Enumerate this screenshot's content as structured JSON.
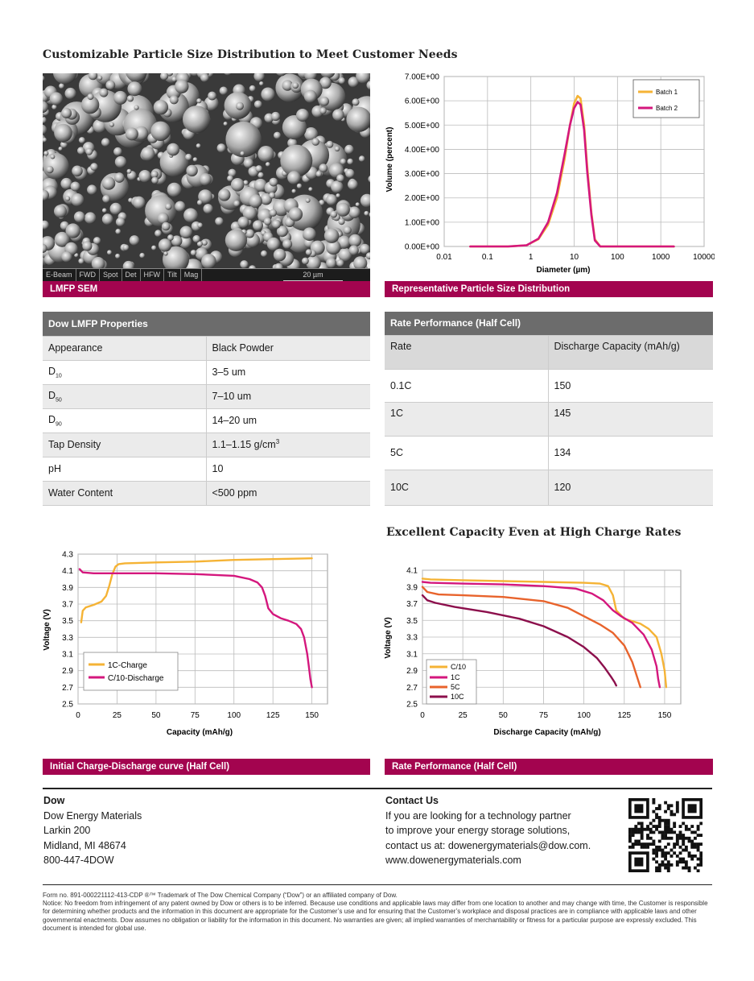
{
  "section1": {
    "heading": "Customizable Particle Size Distribution to Meet Customer Needs"
  },
  "sem": {
    "caption": "LMFP SEM",
    "info": [
      "E-Beam",
      "FWD",
      "Spot",
      "Det",
      "HFW",
      "Tilt",
      "Mag"
    ],
    "scale": "20 µm"
  },
  "psd": {
    "caption": "Representative Particle Size Distribution",
    "chart_data": {
      "type": "line",
      "xscale": "log",
      "xlabel": "Diameter (µm)",
      "ylabel": "Volume (percent)",
      "xlim": [
        0.01,
        10000
      ],
      "ylim": [
        0,
        7
      ],
      "x_ticks": [
        "0.01",
        "0.1",
        "1",
        "10",
        "100",
        "1000",
        "10000"
      ],
      "y_ticks": [
        "0.00E+00",
        "1.00E+00",
        "2.00E+00",
        "3.00E+00",
        "4.00E+00",
        "5.00E+00",
        "6.00E+00",
        "7.00E+00"
      ],
      "legend": "top-right",
      "series": [
        {
          "name": "Batch 1",
          "color": "#f5b335",
          "x": [
            0.04,
            0.3,
            0.8,
            1.5,
            2.5,
            4,
            6,
            8,
            10,
            12,
            14,
            17,
            20,
            25,
            30,
            40,
            100,
            600,
            2000
          ],
          "y": [
            0,
            0,
            0.05,
            0.3,
            0.9,
            2.0,
            3.6,
            5.0,
            5.9,
            6.2,
            6.1,
            5.0,
            3.3,
            1.4,
            0.3,
            0,
            0,
            0,
            0
          ]
        },
        {
          "name": "Batch 2",
          "color": "#d4177d",
          "x": [
            0.04,
            0.3,
            0.8,
            1.5,
            2.5,
            4,
            6,
            8,
            10,
            12,
            14,
            17,
            20,
            25,
            30,
            40,
            100,
            600,
            2000
          ],
          "y": [
            0,
            0,
            0.05,
            0.32,
            1.0,
            2.2,
            3.8,
            5.0,
            5.7,
            5.95,
            5.85,
            4.8,
            3.1,
            1.3,
            0.25,
            0,
            0,
            0,
            0
          ]
        }
      ]
    }
  },
  "props_table": {
    "title": "Dow LMFP Properties",
    "rows": [
      {
        "label": "Appearance",
        "value": "Black Powder"
      },
      {
        "label": "D",
        "sub": "10",
        "value": "3–5 um"
      },
      {
        "label": "D",
        "sub": "50",
        "value": "7–10 um"
      },
      {
        "label": "D",
        "sub": "90",
        "value": "14–20 um"
      },
      {
        "label": "Tap Density",
        "value": "1.1–1.15 g/cm",
        "sup": "3"
      },
      {
        "label": "pH",
        "value": "10"
      },
      {
        "label": "Water Content",
        "value": "<500 ppm"
      }
    ]
  },
  "rate_table": {
    "title": "Rate Performance (Half Cell)",
    "col1": "Rate",
    "col2": "Discharge Capacity (mAh/g)",
    "rows": [
      {
        "rate": "0.1C",
        "cap": "150"
      },
      {
        "rate": "1C",
        "cap": "145"
      },
      {
        "rate": "5C",
        "cap": "134"
      },
      {
        "rate": "10C",
        "cap": "120"
      }
    ]
  },
  "section2": {
    "heading": "Excellent Capacity Even at High Charge Rates"
  },
  "charge_chart": {
    "caption": "Initial Charge-Discharge curve (Half Cell)",
    "chart_data": {
      "type": "line",
      "xlabel": "Capacity (mAh/g)",
      "ylabel": "Voltage (V)",
      "xlim": [
        0,
        160
      ],
      "ylim": [
        2.5,
        4.3
      ],
      "x_ticks": [
        "0",
        "25",
        "50",
        "75",
        "100",
        "125",
        "150"
      ],
      "y_ticks": [
        "2.5",
        "2.7",
        "2.9",
        "3.1",
        "3.3",
        "3.5",
        "3.7",
        "3.9",
        "4.1",
        "4.3"
      ],
      "legend": "bottom-left",
      "series": [
        {
          "name": "1C-Charge",
          "color": "#f5b335",
          "x": [
            2,
            3,
            5,
            10,
            15,
            18,
            20,
            22,
            24,
            26,
            30,
            50,
            75,
            100,
            125,
            150
          ],
          "y": [
            3.48,
            3.62,
            3.66,
            3.69,
            3.73,
            3.8,
            3.92,
            4.06,
            4.15,
            4.18,
            4.19,
            4.2,
            4.21,
            4.23,
            4.24,
            4.25
          ]
        },
        {
          "name": "C/10-Discharge",
          "color": "#d4177d",
          "x": [
            1,
            3,
            10,
            25,
            50,
            75,
            100,
            110,
            115,
            118,
            120,
            122,
            125,
            130,
            135,
            140,
            143,
            145,
            147,
            148,
            149,
            150
          ],
          "y": [
            4.12,
            4.08,
            4.07,
            4.07,
            4.07,
            4.06,
            4.04,
            4.0,
            3.96,
            3.9,
            3.8,
            3.65,
            3.58,
            3.53,
            3.5,
            3.46,
            3.4,
            3.3,
            3.1,
            2.95,
            2.8,
            2.7
          ]
        }
      ]
    }
  },
  "rate_chart": {
    "caption": "Rate Performance (Half Cell)",
    "chart_data": {
      "type": "line",
      "xlabel": "Discharge Capacity (mAh/g)",
      "ylabel": "Voltage (V)",
      "xlim": [
        0,
        160
      ],
      "ylim": [
        2.5,
        4.1
      ],
      "x_ticks": [
        "0",
        "25",
        "50",
        "75",
        "100",
        "125",
        "150"
      ],
      "y_ticks": [
        "2.5",
        "2.7",
        "2.9",
        "3.1",
        "3.3",
        "3.5",
        "3.7",
        "3.9",
        "4.1"
      ],
      "legend": "bottom-left",
      "series": [
        {
          "name": "C/10",
          "color": "#f5b335",
          "x": [
            0,
            5,
            25,
            50,
            75,
            100,
            110,
            115,
            118,
            120,
            125,
            135,
            140,
            145,
            148,
            150,
            151
          ],
          "y": [
            4.0,
            3.99,
            3.98,
            3.97,
            3.96,
            3.95,
            3.94,
            3.91,
            3.8,
            3.62,
            3.52,
            3.46,
            3.4,
            3.3,
            3.1,
            2.9,
            2.7
          ]
        },
        {
          "name": "1C",
          "color": "#d4177d",
          "x": [
            0,
            5,
            25,
            50,
            75,
            95,
            105,
            112,
            118,
            123,
            130,
            137,
            142,
            145,
            146,
            147
          ],
          "y": [
            3.96,
            3.95,
            3.94,
            3.93,
            3.91,
            3.88,
            3.82,
            3.74,
            3.62,
            3.55,
            3.47,
            3.33,
            3.15,
            2.95,
            2.8,
            2.7
          ]
        },
        {
          "name": "5C",
          "color": "#e8632c",
          "x": [
            0,
            3,
            10,
            25,
            50,
            75,
            90,
            100,
            110,
            118,
            125,
            130,
            133,
            135
          ],
          "y": [
            3.9,
            3.84,
            3.81,
            3.8,
            3.78,
            3.73,
            3.65,
            3.55,
            3.45,
            3.35,
            3.2,
            3.0,
            2.82,
            2.7
          ]
        },
        {
          "name": "10C",
          "color": "#8c0f4c",
          "x": [
            0,
            3,
            8,
            20,
            40,
            60,
            75,
            90,
            100,
            108,
            113,
            117,
            119,
            120
          ],
          "y": [
            3.8,
            3.74,
            3.71,
            3.66,
            3.6,
            3.52,
            3.43,
            3.3,
            3.18,
            3.05,
            2.93,
            2.82,
            2.76,
            2.72
          ]
        }
      ]
    }
  },
  "footer": {
    "left_title": "Dow",
    "left_lines": [
      "Dow Energy Materials",
      "Larkin 200",
      "Midland, MI 48674",
      "800-447-4DOW"
    ],
    "right_title": "Contact Us",
    "right_lines": [
      "If  you are looking for a technology partner",
      "to improve your energy storage solutions,",
      "contact us at: dowenergymaterials@dow.com.",
      "www.dowenergymaterials.com"
    ],
    "fine_print": [
      "Form no. 891-000221112-413-CDP  ®™ Trademark of The Dow Chemical Company (“Dow”) or an affiliated company of Dow.",
      "Notice: No freedom from infringement of any patent owned by Dow or others is to be inferred. Because use conditions and applicable laws may differ from one location to another and may change with time, the Customer is responsible for determining whether products and the information in this document are appropriate for the Customer’s use and for ensuring that the Customer’s workplace and disposal practices are in compliance with applicable laws and other governmental enactments. Dow assumes no obligation or liability for the information in this document. No warranties are given; all implied warranties of merchantability or fitness for a particular purpose are expressly excluded. This document is intended for global use."
    ]
  }
}
